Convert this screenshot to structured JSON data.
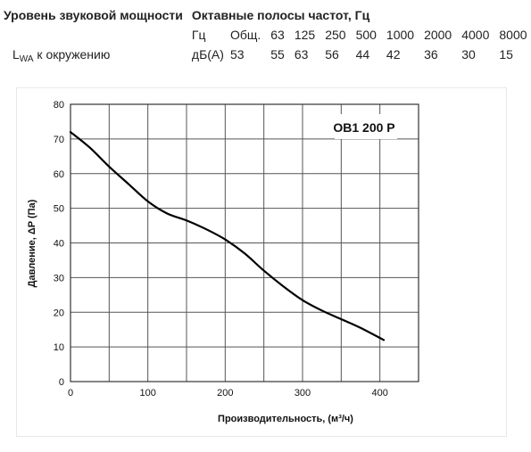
{
  "table": {
    "header": {
      "col1": "Уровень звуковой мощности",
      "col2": "Октавные полосы частот, Гц"
    },
    "units_row": {
      "unit": "Гц",
      "bands": [
        "Общ.",
        "63",
        "125",
        "250",
        "500",
        "1000",
        "2000",
        "4000",
        "8000"
      ]
    },
    "value_row": {
      "label_main": "L",
      "label_sub": "WA",
      "label_rest": " к окружению",
      "unit": "дБ(A)",
      "values": [
        "53",
        "55",
        "63",
        "56",
        "44",
        "42",
        "36",
        "30",
        "15"
      ]
    }
  },
  "chart_data": {
    "type": "line",
    "title": "OB1 200 P",
    "xlabel": "Производительность, (м³/ч)",
    "ylabel": "Давление, ΔP (Па)",
    "xlim": [
      0,
      450
    ],
    "ylim": [
      0,
      80
    ],
    "xticks": [
      "0",
      "100",
      "200",
      "300",
      "400"
    ],
    "yticks": [
      "0",
      "10",
      "20",
      "30",
      "40",
      "50",
      "60",
      "70",
      "80"
    ],
    "grid": true,
    "series": [
      {
        "x": [
          0,
          25,
          50,
          75,
          100,
          125,
          150,
          175,
          200,
          225,
          250,
          275,
          300,
          325,
          350,
          375,
          405
        ],
        "y": [
          72,
          67.5,
          62,
          57,
          52,
          48.5,
          46.5,
          44,
          41,
          37,
          32,
          27.5,
          23.5,
          20.5,
          18,
          15.5,
          12
        ],
        "color": "#000000"
      }
    ]
  }
}
